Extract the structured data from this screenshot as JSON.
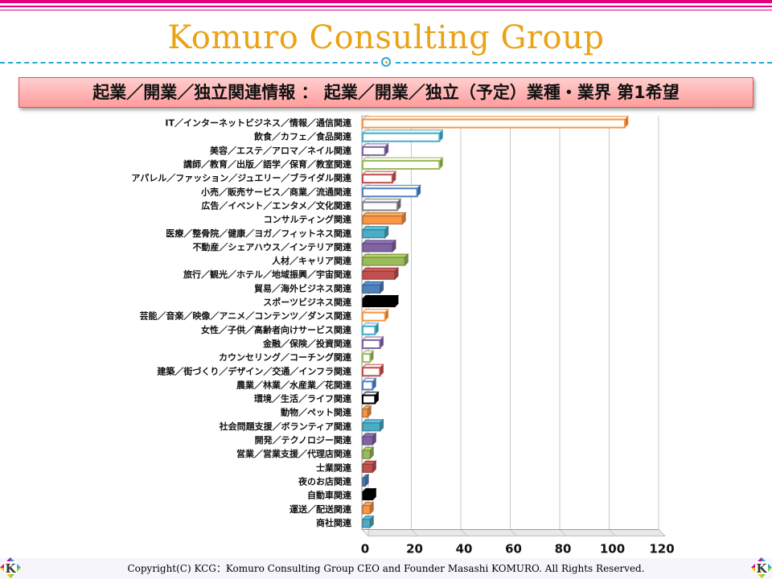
{
  "header": {
    "brand": "Komuro Consulting Group",
    "banner": "起業／開業／独立関連情報 ： 起業／開業／独立（予定）業種・業界 第1希望"
  },
  "footer": {
    "copyright": "Copyright(C) KCG：Komuro Consulting Group CEO and Founder Masashi KOMURO. All Rights Reserved.",
    "logo_letter": "K"
  },
  "chart_data": {
    "type": "bar",
    "orientation": "horizontal",
    "style": "3d",
    "grid": true,
    "xlim": [
      0,
      120
    ],
    "xticks": [
      "0",
      "20",
      "40",
      "60",
      "80",
      "100",
      "120"
    ],
    "categories": [
      "IT／インターネットビジネス／情報／通信関連",
      "飲食／カフェ／食品関連",
      "美容／エステ／アロマ／ネイル関連",
      "講師／教育／出版／語学／保育／教室関連",
      "アパレル／ファッション／ジュエリー／ブライダル関連",
      "小売／販売サービス／商業／流通関連",
      "広告／イベント／エンタメ／文化関連",
      "コンサルティング関連",
      "医療／整骨院／健康／ヨガ／フィットネス関連",
      "不動産／シェアハウス／インテリア関連",
      "人材／キャリア関連",
      "旅行／観光／ホテル／地域振興／宇宙関連",
      "貿易／海外ビジネス関連",
      "スポーツビジネス関連",
      "芸能／音楽／映像／アニメ／コンテンツ／ダンス関連",
      "女性／子供／高齢者向けサービス関連",
      "金融／保険／投資関連",
      "カウンセリング／コーチング関連",
      "建築／街づくり／デザイン／交通／インフラ関連",
      "農業／林業／水産業／花関連",
      "環境／生活／ライフ関連",
      "動物／ペット関連",
      "社会問題支援／ボランティア関連",
      "開発／テクノロジー関連",
      "営業／営業支援／代理店関連",
      "士業関連",
      "夜のお店関連",
      "自動車関連",
      "運送／配送関連",
      "商社関連"
    ],
    "values": [
      106,
      31,
      9,
      31,
      12,
      22,
      14,
      16,
      9,
      12,
      17,
      13,
      7,
      13,
      9,
      5,
      7,
      3,
      7,
      4,
      5,
      2,
      7,
      4,
      3,
      4,
      1,
      4,
      3,
      3
    ],
    "colors": [
      "#f79646",
      "#4bacc6",
      "#8064a2",
      "#9bbb59",
      "#c0504d",
      "#4f81bd",
      "#7f7f7f",
      "#f79646",
      "#4bacc6",
      "#8064a2",
      "#9bbb59",
      "#c0504d",
      "#4f81bd",
      "#000000",
      "#f79646",
      "#4bacc6",
      "#8064a2",
      "#9bbb59",
      "#c0504d",
      "#4f81bd",
      "#000000",
      "#f79646",
      "#4bacc6",
      "#8064a2",
      "#9bbb59",
      "#c0504d",
      "#4f81bd",
      "#000000",
      "#f79646",
      "#4bacc6"
    ],
    "hollow": [
      true,
      true,
      true,
      true,
      true,
      true,
      true,
      false,
      false,
      false,
      false,
      false,
      false,
      false,
      true,
      true,
      true,
      true,
      true,
      true,
      true,
      false,
      false,
      false,
      false,
      false,
      false,
      false,
      false,
      false
    ]
  }
}
